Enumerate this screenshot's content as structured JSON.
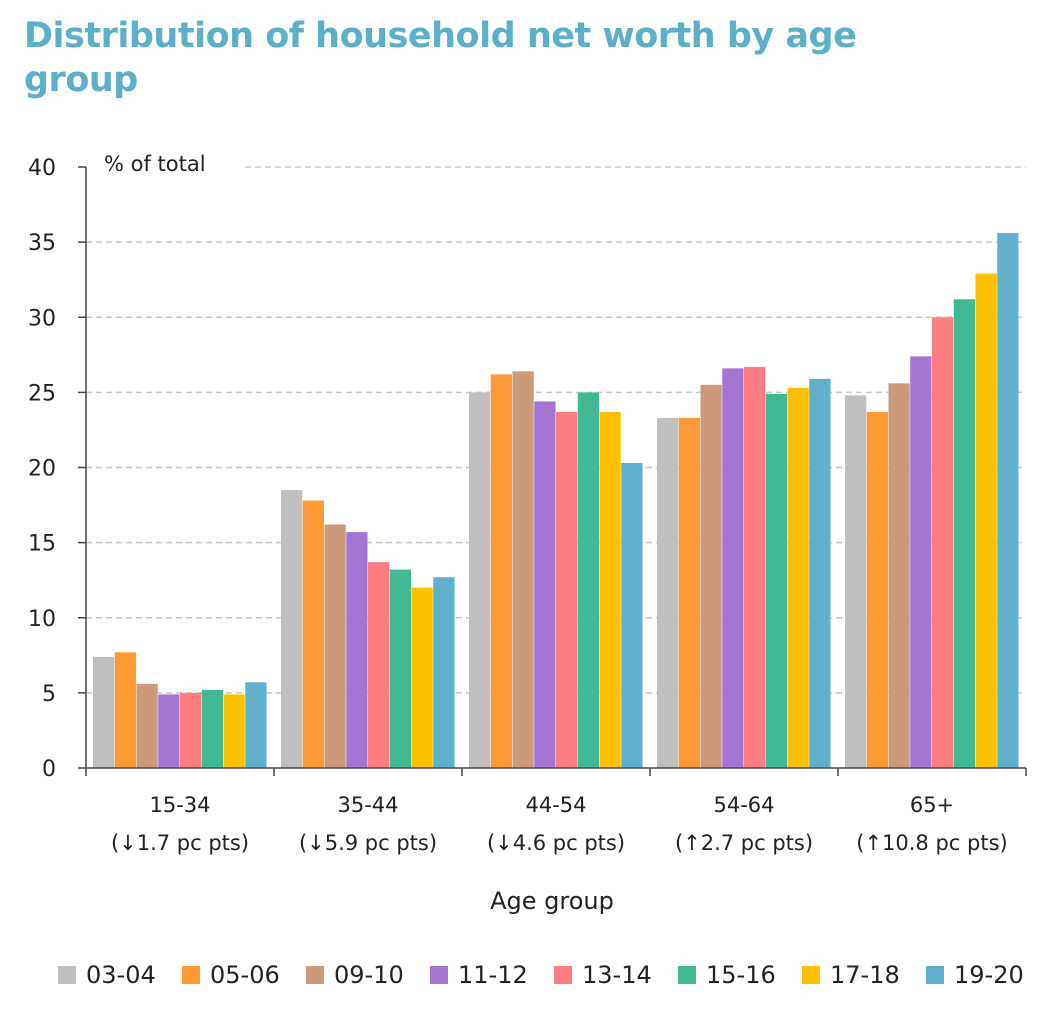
{
  "title": "Distribution of household net worth by age group",
  "chart_data": {
    "type": "bar",
    "title": "Distribution of household net worth by age group",
    "ylabel": "% of total",
    "xlabel": "Age group",
    "ylim": [
      0,
      40
    ],
    "yticks": [
      0,
      5,
      10,
      15,
      20,
      25,
      30,
      35,
      40
    ],
    "grid": true,
    "legend_position": "bottom",
    "categories": [
      {
        "label": "15-34",
        "sublabel": "(↓1.7 pc pts)"
      },
      {
        "label": "35-44",
        "sublabel": "(↓5.9 pc pts)"
      },
      {
        "label": "44-54",
        "sublabel": "(↓4.6 pc pts)"
      },
      {
        "label": "54-64",
        "sublabel": "(↑2.7 pc pts)"
      },
      {
        "label": "65+",
        "sublabel": "(↑10.8 pc pts)"
      }
    ],
    "series": [
      {
        "name": "03-04",
        "color": "#bfbfbf",
        "values": [
          7.4,
          18.5,
          25.0,
          23.3,
          24.8
        ]
      },
      {
        "name": "05-06",
        "color": "#fd9a35",
        "values": [
          7.7,
          17.8,
          26.2,
          23.3,
          23.7
        ]
      },
      {
        "name": "09-10",
        "color": "#cc9a7a",
        "values": [
          5.6,
          16.2,
          26.4,
          25.5,
          25.6
        ]
      },
      {
        "name": "11-12",
        "color": "#a674d2",
        "values": [
          4.9,
          15.7,
          24.4,
          26.6,
          27.4
        ]
      },
      {
        "name": "13-14",
        "color": "#fd7c80",
        "values": [
          5.0,
          13.7,
          23.7,
          26.7,
          30.0
        ]
      },
      {
        "name": "15-16",
        "color": "#40b994",
        "values": [
          5.2,
          13.2,
          25.0,
          24.9,
          31.2
        ]
      },
      {
        "name": "17-18",
        "color": "#fdc000",
        "values": [
          4.9,
          12.0,
          23.7,
          25.3,
          32.9
        ]
      },
      {
        "name": "19-20",
        "color": "#5eb0cc",
        "values": [
          5.7,
          12.7,
          20.3,
          25.9,
          35.6
        ]
      }
    ]
  }
}
